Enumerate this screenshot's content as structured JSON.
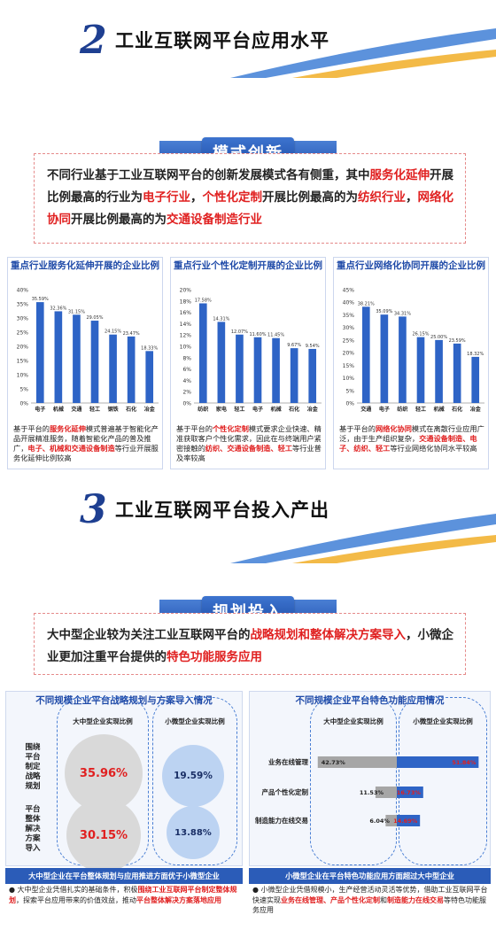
{
  "section2": {
    "num": "2",
    "title": "工业互联网平台应用水平",
    "banner": "模式创新",
    "intro": [
      {
        "t": "不同行业基于工业互联网平台的创新发展模式各有侧重，其中",
        "r": false
      },
      {
        "t": "服务化延伸",
        "r": true
      },
      {
        "t": "开展比例最高的行业为",
        "r": false
      },
      {
        "t": "电子行业",
        "r": true
      },
      {
        "t": "，",
        "r": false
      },
      {
        "t": "个性化定制",
        "r": true
      },
      {
        "t": "开展比例最高的为",
        "r": false
      },
      {
        "t": "纺织行业",
        "r": true
      },
      {
        "t": "，",
        "r": false
      },
      {
        "t": "网络化协同",
        "r": true
      },
      {
        "t": "开展比例最高的为",
        "r": false
      },
      {
        "t": "交通设备制造行业",
        "r": true
      }
    ]
  },
  "chart_data": [
    {
      "type": "bar",
      "title": "重点行业服务化延伸开展的企业比例",
      "categories": [
        "电子",
        "机械",
        "交通",
        "轻工",
        "钢铁",
        "石化",
        "冶金"
      ],
      "values": [
        35.59,
        32.36,
        31.15,
        29.05,
        24.15,
        23.47,
        18.33
      ],
      "value_labels": [
        "35.59%",
        "32.36%",
        "31.15%",
        "29.05%",
        "24.15%",
        "23.47%",
        "18.33%"
      ],
      "yticks": [
        "0%",
        "5%",
        "10%",
        "15%",
        "20%",
        "25%",
        "30%",
        "35%",
        "40%"
      ],
      "ylim": [
        0,
        40
      ]
    },
    {
      "type": "bar",
      "title": "重点行业个性化定制开展的企业比例",
      "categories": [
        "纺织",
        "家电",
        "轻工",
        "电子",
        "机械",
        "石化",
        "冶金"
      ],
      "values": [
        17.58,
        14.31,
        12.07,
        11.6,
        11.45,
        9.67,
        9.54
      ],
      "value_labels": [
        "17.58%",
        "14.31%",
        "12.07%",
        "11.60%",
        "11.45%",
        "9.67%",
        "9.54%"
      ],
      "yticks": [
        "0%",
        "2%",
        "4%",
        "6%",
        "8%",
        "10%",
        "12%",
        "14%",
        "16%",
        "18%",
        "20%"
      ],
      "ylim": [
        0,
        20
      ]
    },
    {
      "type": "bar",
      "title": "重点行业网络化协同开展的企业比例",
      "categories": [
        "交通",
        "电子",
        "纺织",
        "轻工",
        "机械",
        "石化",
        "冶金"
      ],
      "values": [
        38.21,
        35.09,
        34.31,
        26.15,
        25.0,
        23.59,
        18.32
      ],
      "value_labels": [
        "38.21%",
        "35.09%",
        "34.31%",
        "26.15%",
        "25.00%",
        "23.59%",
        "18.32%"
      ],
      "yticks": [
        "0%",
        "5%",
        "10%",
        "15%",
        "20%",
        "25%",
        "30%",
        "35%",
        "40%",
        "45%"
      ],
      "ylim": [
        0,
        45
      ]
    },
    {
      "type": "bar",
      "title": "不同规模企业平台特色功能应用情况",
      "categories": [
        "业务在线管理",
        "产品个性化定制",
        "制造能力在线交易"
      ],
      "series": [
        {
          "name": "大中型企业实现比例",
          "values": [
            42.73,
            11.53,
            6.04
          ],
          "value_labels": [
            "42.73%",
            "11.53%",
            "6.04%"
          ]
        },
        {
          "name": "小微型企业实现比例",
          "values": [
            51.84,
            16.73,
            14.69
          ],
          "value_labels": [
            "51.84%",
            "16.73%",
            "14.69%"
          ]
        }
      ]
    }
  ],
  "notes": [
    [
      {
        "t": "基于平台的",
        "r": false
      },
      {
        "t": "服务化延伸",
        "r": true
      },
      {
        "t": "模式普遍基于智能化产品开展精准服务，随着智能化产品的普及推广，",
        "r": false
      },
      {
        "t": "电子、机械和交通设备制造",
        "r": true
      },
      {
        "t": "等行业开展服务化延伸比例较高",
        "r": false
      }
    ],
    [
      {
        "t": "基于平台的",
        "r": false
      },
      {
        "t": "个性化定制",
        "r": true
      },
      {
        "t": "模式要求企业快速、精准获取客户个性化需求，因此在与终端用户紧密接触的",
        "r": false
      },
      {
        "t": "纺织、交通设备制造、轻工",
        "r": true
      },
      {
        "t": "等行业普及率较高",
        "r": false
      }
    ],
    [
      {
        "t": "基于平台的",
        "r": false
      },
      {
        "t": "网络化协同",
        "r": true
      },
      {
        "t": "模式在离散行业应用广泛，由于生产组织复杂，",
        "r": false
      },
      {
        "t": "交通设备制造、电子、纺织、轻工",
        "r": true
      },
      {
        "t": "等行业网络化协同水平较高",
        "r": false
      }
    ]
  ],
  "section3": {
    "num": "3",
    "title": "工业互联网平台投入产出",
    "banner": "规划投入",
    "intro": [
      {
        "t": "大中型企业较为关注工业互联网平台的",
        "r": false
      },
      {
        "t": "战略规划和整体解决方案导入",
        "r": true
      },
      {
        "t": "，小微企业更加注重平台提供的",
        "r": false
      },
      {
        "t": "特色功能服务应用",
        "r": true
      }
    ]
  },
  "left_panel": {
    "title": "不同规模企业平台战略规划与方案导入情况",
    "col1": "大中型企业实现比例",
    "col2": "小微型企业实现比例",
    "rows": [
      {
        "label": "围绕平台制定战略规划",
        "large": "35.96%",
        "small": "19.59%",
        "large_v": 35.96,
        "small_v": 19.59
      },
      {
        "label": "平台整体解决方案导入",
        "large": "30.15%",
        "small": "13.88%",
        "large_v": 30.15,
        "small_v": 13.88
      }
    ],
    "bar": "大中型企业在平台整体规划与应用推进方面优于小微型企业",
    "note": [
      {
        "t": "大中型企业凭借扎实的基础条件，积极",
        "r": false
      },
      {
        "t": "围绕工业互联网平台制定整体规划",
        "r": true
      },
      {
        "t": "，探索平台应用带来的价值效益，推动",
        "r": false
      },
      {
        "t": "平台整体解决方案落地应用",
        "r": true
      }
    ]
  },
  "right_panel": {
    "col1": "大中型企业实现比例",
    "col2": "小微型企业实现比例",
    "bar": "小微型企业在平台特色功能应用方面超过大中型企业",
    "note": [
      {
        "t": "小微型企业凭借规模小，生产经营活动灵活等优势，借助工业互联网平台快速实现",
        "r": false
      },
      {
        "t": "业务在线管理、产品个性化定制",
        "r": true
      },
      {
        "t": "和",
        "r": false
      },
      {
        "t": "制造能力在线交易",
        "r": true
      },
      {
        "t": "等特色功能服务应用",
        "r": false
      }
    ]
  },
  "colors": {
    "blue": "#2b5cb8",
    "bar": "#2e64c6",
    "red": "#e02020",
    "grey": "#a6a6a6"
  }
}
